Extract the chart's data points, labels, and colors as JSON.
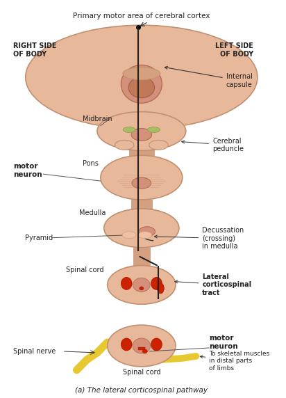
{
  "title": "(a) The lateral corticospinal pathway",
  "background_color": "#ffffff",
  "brain_color": "#e8b89a",
  "brain_inner_color": "#d4907a",
  "section_colors": {
    "midbrain": "#e8b89a",
    "pons": "#e8b89a",
    "medulla": "#e8b89a",
    "spinal_cord": "#e8b89a",
    "spinal_cord2": "#e8b89a"
  },
  "red_color": "#cc2200",
  "yellow_color": "#e8c830",
  "green_color": "#88aa44",
  "labels": {
    "top_center": "Primary motor area of cerebral cortex",
    "right_side": "RIGHT SIDE\nOF BODY",
    "left_side": "LEFT SIDE\nOF BODY",
    "internal_capsule": "Internal\ncapsule",
    "midbrain": "Midbrain",
    "cerebral_peduncle": "Cerebral\npeduncle",
    "upper_motor_neuron": "motor\nneuron",
    "pons": "Pons",
    "medulla": "Medulla",
    "pyramid": "Pyramid",
    "decussation": "Decussation\n(crossing)\nin medulla",
    "spinal_cord": "Spinal cord",
    "lateral_tract": "Lateral\ncorticospinal\ntract",
    "spinal_nerve": "Spinal nerve",
    "lower_motor_neuron": "motor\nneuron",
    "to_skeletal": "To skeletal muscles\nin distal parts\nof limbs",
    "spinal_cord2": "Spinal cord"
  },
  "figsize": [
    4.12,
    5.72
  ],
  "dpi": 100
}
